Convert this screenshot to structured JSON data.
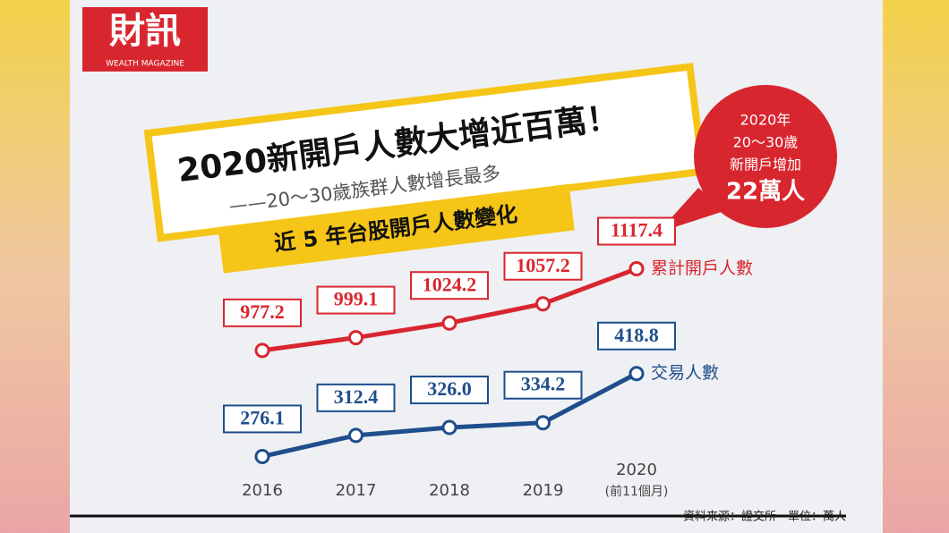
{
  "brand": {
    "name": "財訊",
    "tagline": "WEALTH MAGAZINE"
  },
  "headline": {
    "title": "2020新開戶人數大增近百萬！",
    "subtitle": "——20～30歲族群人數增長最多"
  },
  "callout": {
    "lines": [
      "2020年",
      "20～30歲",
      "新開戶增加"
    ],
    "highlight": "22萬人"
  },
  "source_note": "資料來源：證交所　單位：萬人",
  "chart_data": {
    "type": "line",
    "title": "近 5 年台股開戶人數變化",
    "categories": [
      "2016",
      "2017",
      "2018",
      "2019",
      "2020"
    ],
    "last_category_note": "(前11個月)",
    "ylim": [
      765,
      1195
    ],
    "y2lim": [
      246,
      677
    ],
    "series": [
      {
        "name": "累計開戶人數",
        "color": "#d8262f",
        "values": [
          977.2,
          999.1,
          1024.2,
          1057.2,
          1117.4
        ],
        "value_labels": [
          "977.2",
          "999.1",
          "1024.2",
          "1057.2",
          "1117.4"
        ]
      },
      {
        "name": "交易人數",
        "color": "#1f4e8c",
        "axis": "y2",
        "values": [
          276.1,
          312.4,
          326.0,
          334.2,
          418.8
        ],
        "value_labels": [
          "276.1",
          "312.4",
          "326.0",
          "334.2",
          "418.8"
        ]
      }
    ]
  }
}
